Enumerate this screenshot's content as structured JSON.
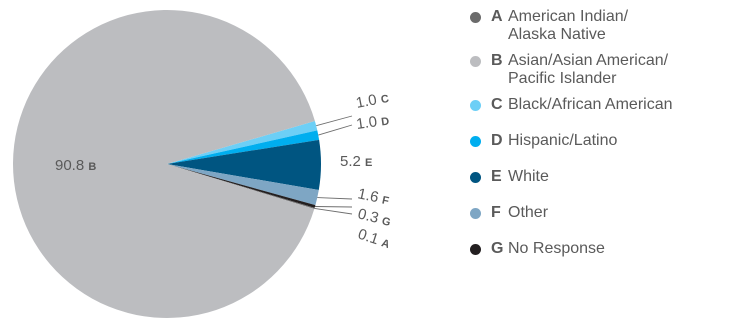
{
  "chart_data": {
    "type": "pie",
    "slices": [
      {
        "key": "A",
        "label": "American Indian/\nAlaska Native",
        "value": 0.1,
        "color": "#6b6b6b"
      },
      {
        "key": "B",
        "label": "Asian/Asian American/\nPacific Islander",
        "value": 90.8,
        "color": "#bcbdc0"
      },
      {
        "key": "C",
        "label": "Black/African American",
        "value": 1.0,
        "color": "#6dcff6"
      },
      {
        "key": "D",
        "label": "Hispanic/Latino",
        "value": 1.0,
        "color": "#00aeef"
      },
      {
        "key": "E",
        "label": "White",
        "value": 5.2,
        "color": "#005581"
      },
      {
        "key": "F",
        "label": "Other",
        "value": 1.6,
        "color": "#7ea6c4"
      },
      {
        "key": "G",
        "label": "No Response",
        "value": 0.3,
        "color": "#231f20"
      }
    ],
    "data_labels": {
      "A": "0.1",
      "B": "90.8",
      "C": "1.0",
      "D": "1.0",
      "E": "5.2",
      "F": "1.6",
      "G": "0.3"
    },
    "legend_position": "right"
  }
}
